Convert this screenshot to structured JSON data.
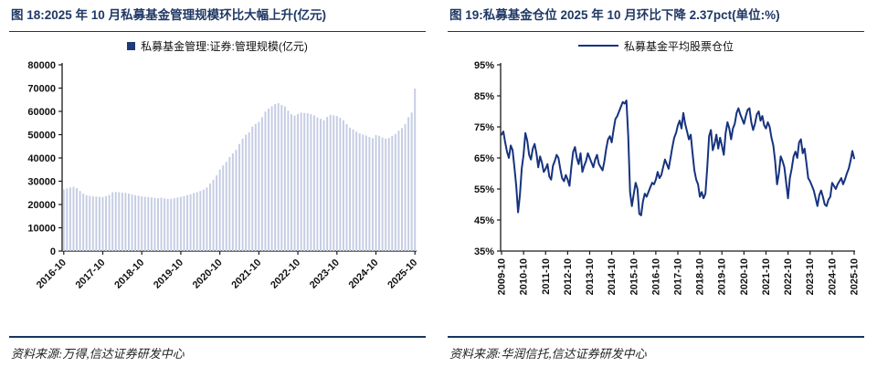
{
  "colors": {
    "title_navy": "#1f3864",
    "bar_fill": "#c6cde4",
    "line_navy": "#16337f",
    "axis": "#1a1a1a",
    "legend_square": "#1f3a7a"
  },
  "figures": [
    {
      "title": "图 18:2025 年 10 月私募基金管理规模环比大幅上升(亿元)",
      "legend": "私募基金管理:证券:管理规模(亿元)",
      "source": "资料来源:万得,信达证券研发中心",
      "chart_data": {
        "type": "bar",
        "x_start": "2016-10",
        "x_interval": "month",
        "ylim": [
          0,
          80000
        ],
        "ytick_values": [
          0,
          10000,
          20000,
          30000,
          40000,
          50000,
          60000,
          70000,
          80000
        ],
        "ytick_labels": [
          "0",
          "10000",
          "20000",
          "30000",
          "40000",
          "50000",
          "60000",
          "70000",
          "80000"
        ],
        "xtick_positions": [
          0,
          12,
          24,
          36,
          48,
          60,
          72,
          84,
          96,
          108
        ],
        "xtick_labels": [
          "2016-10",
          "2017-10",
          "2018-10",
          "2019-10",
          "2020-10",
          "2021-10",
          "2022-10",
          "2023-10",
          "2024-10",
          "2025-10"
        ],
        "xtick_rotate": -45,
        "grid": false,
        "legend_position": "top-center",
        "values": [
          26500,
          26900,
          27300,
          27600,
          27000,
          25800,
          24600,
          24000,
          23700,
          23500,
          23400,
          23300,
          23200,
          23600,
          24100,
          25200,
          25400,
          25300,
          25100,
          25000,
          24700,
          24300,
          24000,
          23800,
          23500,
          23300,
          23200,
          23000,
          22800,
          22700,
          22900,
          22600,
          22400,
          22500,
          22700,
          23000,
          23300,
          23600,
          24000,
          24400,
          24900,
          25300,
          25800,
          26400,
          27300,
          29000,
          30600,
          32500,
          35000,
          36800,
          38300,
          40400,
          42000,
          43500,
          46000,
          48300,
          50000,
          51000,
          53500,
          54600,
          55500,
          57500,
          59900,
          61200,
          62200,
          63100,
          63500,
          62800,
          62100,
          60300,
          58800,
          58200,
          58900,
          59500,
          59300,
          59200,
          58800,
          58300,
          57400,
          56800,
          56200,
          57600,
          58500,
          58300,
          58000,
          57200,
          56200,
          54500,
          53000,
          52200,
          51300,
          50500,
          50000,
          49600,
          49000,
          48500,
          49800,
          49500,
          48800,
          48300,
          48600,
          49500,
          50300,
          51700,
          52800,
          54600,
          57500,
          59500,
          69800
        ]
      }
    },
    {
      "title": "图 19:私募基金仓位 2025 年 10 月环比下降 2.37pct(单位:%)",
      "legend": "私募基金平均股票仓位",
      "source": "资料来源:华润信托,信达证券研发中心",
      "chart_data": {
        "type": "line",
        "x_start": "2009-10",
        "x_interval": "month",
        "ylim": [
          35,
          95
        ],
        "ytick_values": [
          35,
          45,
          55,
          65,
          75,
          85,
          95
        ],
        "ytick_labels": [
          "35%",
          "45%",
          "55%",
          "65%",
          "75%",
          "85%",
          "95%"
        ],
        "xtick_positions": [
          0,
          12,
          24,
          36,
          48,
          60,
          72,
          84,
          96,
          108,
          120,
          132,
          144,
          156,
          168,
          180,
          192
        ],
        "xtick_labels": [
          "2009-10",
          "2010-10",
          "2011-10",
          "2012-10",
          "2013-10",
          "2014-10",
          "2015-10",
          "2016-10",
          "2017-10",
          "2018-10",
          "2019-10",
          "2020-10",
          "2021-10",
          "2022-10",
          "2023-10",
          "2024-10",
          "2025-10"
        ],
        "xtick_rotate": -90,
        "grid": false,
        "legend_position": "top-center",
        "values": [
          72.5,
          73.5,
          70.0,
          67.0,
          65.0,
          69.0,
          67.5,
          62.0,
          56.0,
          47.5,
          53.0,
          61.5,
          66.0,
          73.0,
          70.5,
          66.0,
          64.5,
          68.0,
          69.5,
          66.5,
          62.0,
          65.5,
          63.5,
          60.5,
          61.5,
          63.0,
          59.0,
          58.0,
          62.5,
          64.0,
          66.0,
          65.0,
          61.5,
          58.5,
          57.5,
          59.5,
          58.0,
          56.0,
          62.0,
          67.0,
          68.5,
          65.0,
          63.0,
          66.5,
          60.5,
          62.5,
          64.0,
          66.5,
          65.0,
          63.5,
          62.0,
          64.5,
          66.0,
          63.0,
          62.0,
          61.0,
          64.0,
          68.0,
          71.0,
          72.0,
          70.0,
          74.0,
          77.5,
          78.5,
          80.0,
          81.5,
          83.0,
          82.5,
          83.5,
          72.0,
          54.0,
          49.5,
          53.5,
          57.0,
          55.0,
          47.0,
          46.5,
          51.0,
          53.5,
          52.5,
          54.0,
          55.5,
          57.0,
          56.5,
          58.0,
          60.5,
          58.5,
          59.5,
          62.0,
          64.5,
          63.0,
          61.5,
          65.0,
          68.5,
          71.5,
          73.0,
          75.5,
          77.0,
          74.5,
          79.5,
          76.0,
          73.5,
          71.0,
          72.5,
          66.5,
          61.0,
          58.0,
          56.5,
          52.5,
          54.0,
          52.0,
          53.5,
          62.0,
          72.0,
          74.0,
          67.5,
          69.5,
          72.5,
          68.0,
          71.5,
          69.0,
          66.0,
          73.0,
          76.5,
          74.5,
          71.0,
          74.5,
          76.0,
          79.5,
          81.0,
          79.0,
          77.5,
          76.0,
          78.5,
          80.5,
          81.0,
          76.5,
          74.0,
          76.0,
          79.0,
          80.0,
          77.0,
          78.5,
          75.5,
          74.5,
          76.5,
          75.0,
          71.5,
          69.0,
          64.0,
          56.5,
          60.0,
          65.5,
          64.0,
          62.0,
          57.0,
          52.0,
          58.5,
          61.5,
          65.5,
          67.0,
          65.0,
          70.0,
          71.0,
          66.5,
          68.0,
          63.5,
          58.5,
          57.5,
          56.0,
          54.5,
          52.0,
          49.5,
          53.0,
          54.5,
          52.5,
          50.0,
          49.5,
          51.5,
          52.5,
          57.0,
          56.0,
          55.0,
          56.5,
          57.5,
          58.5,
          56.5,
          58.0,
          60.0,
          61.5,
          64.0,
          67.25,
          64.88
        ]
      }
    }
  ]
}
